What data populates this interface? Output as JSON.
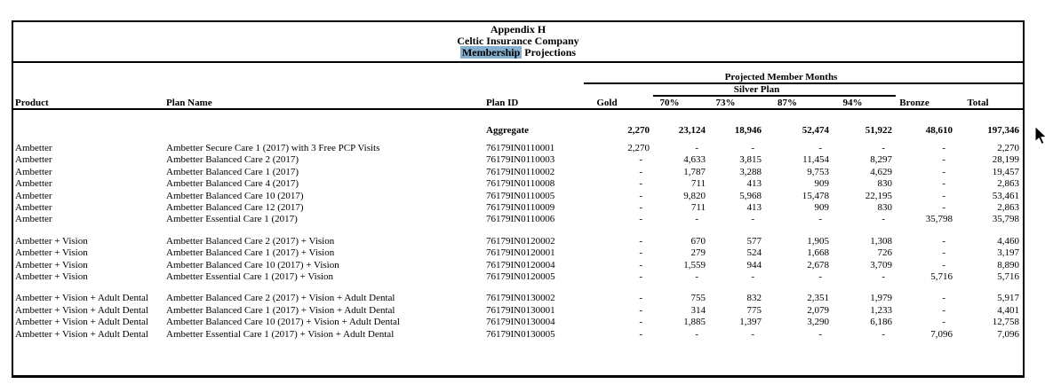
{
  "title": {
    "line1": "Appendix H",
    "line2": "Celtic Insurance Company",
    "line3_highlighted": "Membership",
    "line3_rest": " Projections"
  },
  "header": {
    "projected_member_months": "Projected Member Months",
    "silver_plan": "Silver Plan",
    "columns": [
      "Product",
      "Plan Name",
      "Plan ID",
      "Gold",
      "70%",
      "73%",
      "87%",
      "94%",
      "Bronze",
      "Total"
    ]
  },
  "aggregate": {
    "label": "Aggregate",
    "values": [
      "2,270",
      "23,124",
      "18,946",
      "52,474",
      "51,922",
      "48,610",
      "197,346"
    ]
  },
  "groups": [
    {
      "rows": [
        {
          "product": "Ambetter",
          "plan_name": "Ambetter Secure Care 1 (2017) with 3 Free PCP Visits",
          "plan_id": "76179IN0110001",
          "gold": "2,270",
          "s70": "-",
          "s73": "-",
          "s87": "-",
          "s94": "-",
          "bronze": "-",
          "total": "2,270"
        },
        {
          "product": "Ambetter",
          "plan_name": "Ambetter Balanced Care 2 (2017)",
          "plan_id": "76179IN0110003",
          "gold": "-",
          "s70": "4,633",
          "s73": "3,815",
          "s87": "11,454",
          "s94": "8,297",
          "bronze": "-",
          "total": "28,199"
        },
        {
          "product": "Ambetter",
          "plan_name": "Ambetter Balanced Care 1 (2017)",
          "plan_id": "76179IN0110002",
          "gold": "-",
          "s70": "1,787",
          "s73": "3,288",
          "s87": "9,753",
          "s94": "4,629",
          "bronze": "-",
          "total": "19,457"
        },
        {
          "product": "Ambetter",
          "plan_name": "Ambetter Balanced Care 4 (2017)",
          "plan_id": "76179IN0110008",
          "gold": "-",
          "s70": "711",
          "s73": "413",
          "s87": "909",
          "s94": "830",
          "bronze": "-",
          "total": "2,863"
        },
        {
          "product": "Ambetter",
          "plan_name": "Ambetter Balanced Care 10 (2017)",
          "plan_id": "76179IN0110005",
          "gold": "-",
          "s70": "9,820",
          "s73": "5,968",
          "s87": "15,478",
          "s94": "22,195",
          "bronze": "-",
          "total": "53,461"
        },
        {
          "product": "Ambetter",
          "plan_name": "Ambetter Balanced Care 12 (2017)",
          "plan_id": "76179IN0110009",
          "gold": "-",
          "s70": "711",
          "s73": "413",
          "s87": "909",
          "s94": "830",
          "bronze": "-",
          "total": "2,863"
        },
        {
          "product": "Ambetter",
          "plan_name": "Ambetter Essential Care 1 (2017)",
          "plan_id": "76179IN0110006",
          "gold": "-",
          "s70": "-",
          "s73": "-",
          "s87": "-",
          "s94": "-",
          "bronze": "35,798",
          "total": "35,798"
        }
      ]
    },
    {
      "rows": [
        {
          "product": "Ambetter + Vision",
          "plan_name": "Ambetter Balanced Care 2 (2017) + Vision",
          "plan_id": "76179IN0120002",
          "gold": "-",
          "s70": "670",
          "s73": "577",
          "s87": "1,905",
          "s94": "1,308",
          "bronze": "-",
          "total": "4,460"
        },
        {
          "product": "Ambetter + Vision",
          "plan_name": "Ambetter Balanced Care 1 (2017) + Vision",
          "plan_id": "76179IN0120001",
          "gold": "-",
          "s70": "279",
          "s73": "524",
          "s87": "1,668",
          "s94": "726",
          "bronze": "-",
          "total": "3,197"
        },
        {
          "product": "Ambetter + Vision",
          "plan_name": "Ambetter Balanced Care 10 (2017) + Vision",
          "plan_id": "76179IN0120004",
          "gold": "-",
          "s70": "1,559",
          "s73": "944",
          "s87": "2,678",
          "s94": "3,709",
          "bronze": "-",
          "total": "8,890"
        },
        {
          "product": "Ambetter + Vision",
          "plan_name": "Ambetter Essential Care 1 (2017) + Vision",
          "plan_id": "76179IN0120005",
          "gold": "-",
          "s70": "-",
          "s73": "-",
          "s87": "-",
          "s94": "-",
          "bronze": "5,716",
          "total": "5,716"
        }
      ]
    },
    {
      "rows": [
        {
          "product": "Ambetter + Vision + Adult Dental",
          "plan_name": "Ambetter Balanced Care 2 (2017) + Vision + Adult Dental",
          "plan_id": "76179IN0130002",
          "gold": "-",
          "s70": "755",
          "s73": "832",
          "s87": "2,351",
          "s94": "1,979",
          "bronze": "-",
          "total": "5,917"
        },
        {
          "product": "Ambetter + Vision + Adult Dental",
          "plan_name": "Ambetter Balanced Care 1 (2017) + Vision + Adult Dental",
          "plan_id": "76179IN0130001",
          "gold": "-",
          "s70": "314",
          "s73": "775",
          "s87": "2,079",
          "s94": "1,233",
          "bronze": "-",
          "total": "4,401"
        },
        {
          "product": "Ambetter + Vision + Adult Dental",
          "plan_name": "Ambetter Balanced Care 10 (2017) + Vision + Adult Dental",
          "plan_id": "76179IN0130004",
          "gold": "-",
          "s70": "1,885",
          "s73": "1,397",
          "s87": "3,290",
          "s94": "6,186",
          "bronze": "-",
          "total": "12,758"
        },
        {
          "product": "Ambetter + Vision + Adult Dental",
          "plan_name": "Ambetter Essential Care 1 (2017) + Vision + Adult Dental",
          "plan_id": "76179IN0130005",
          "gold": "-",
          "s70": "-",
          "s73": "-",
          "s87": "-",
          "s94": "-",
          "bronze": "7,096",
          "total": "7,096"
        }
      ]
    }
  ],
  "colors": {
    "selection_highlight": "#85afcf",
    "border": "#000000"
  }
}
